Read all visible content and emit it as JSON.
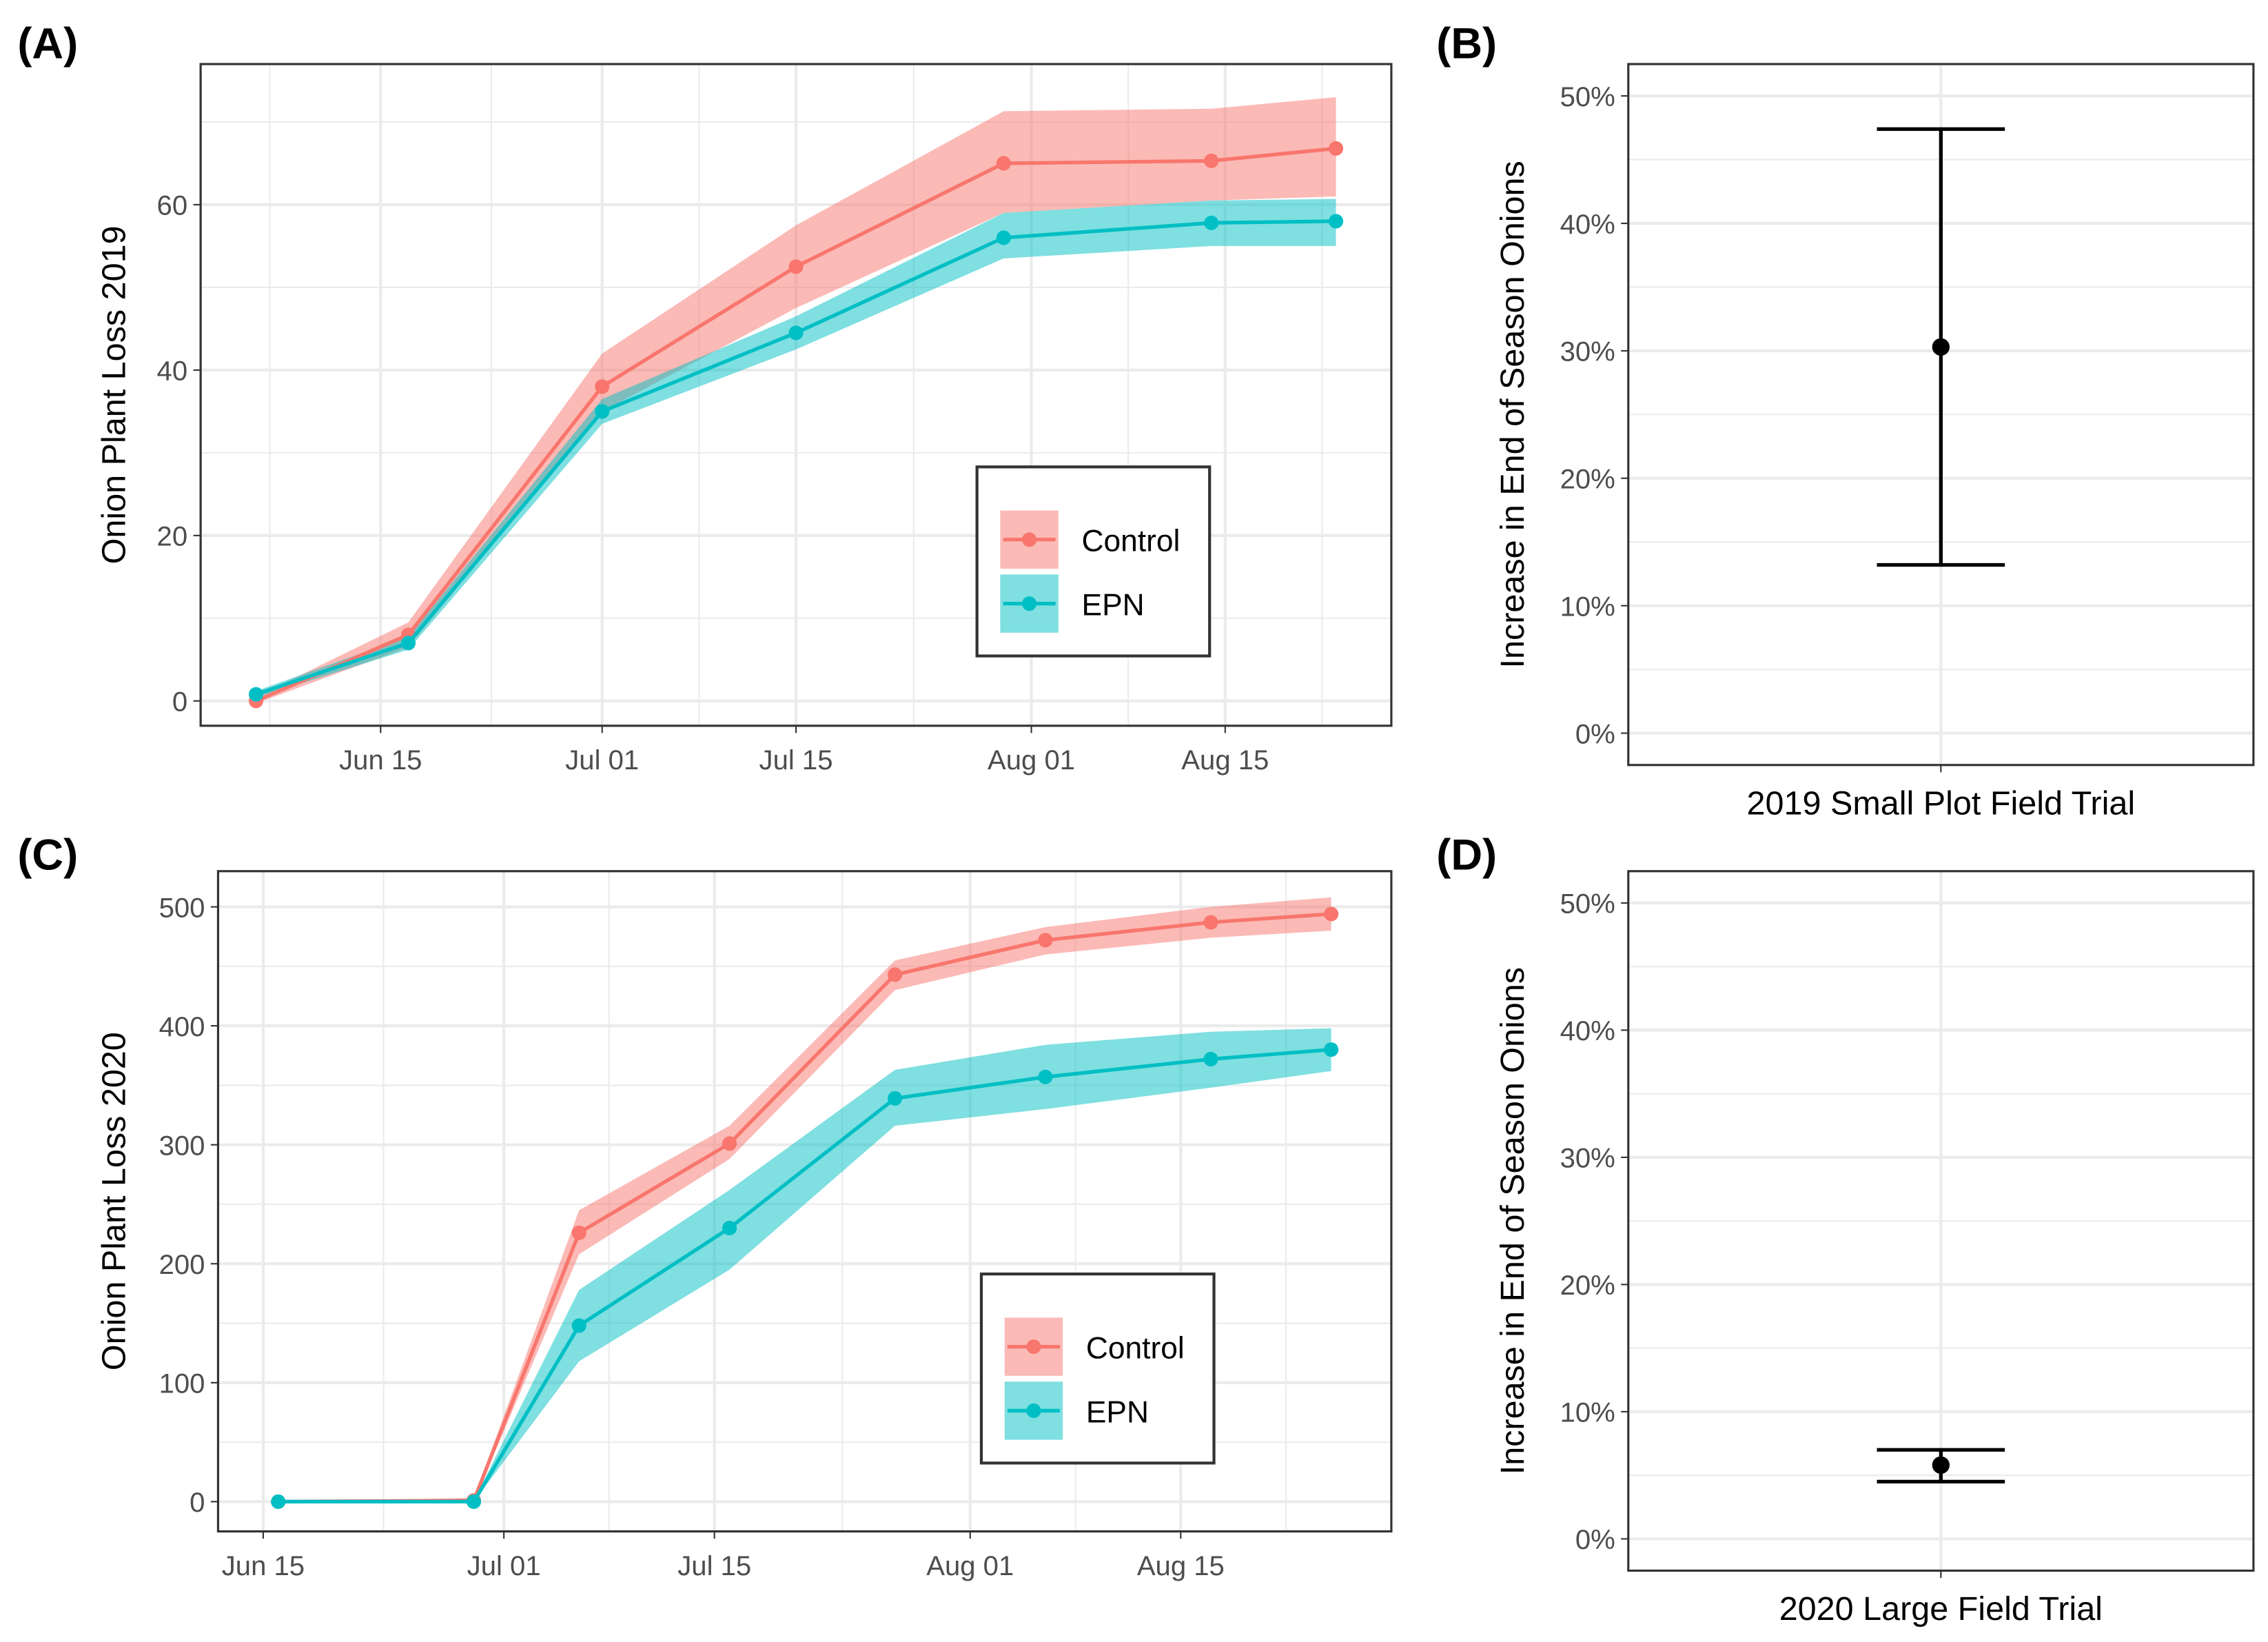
{
  "colors": {
    "control": "#F8766D",
    "epn": "#00BFC4",
    "grid": "#EBEBEB",
    "border": "#333333"
  },
  "chart_data": [
    {
      "panel": "(A)",
      "type": "line",
      "ylabel": "Onion Plant Loss 2019",
      "xlabel": "",
      "xlim": [
        "2019-06-02",
        "2019-08-27"
      ],
      "ylim": [
        -3,
        77
      ],
      "xticks": [
        {
          "date": "2019-06-15",
          "label": "Jun 15"
        },
        {
          "date": "2019-07-01",
          "label": "Jul 01"
        },
        {
          "date": "2019-07-15",
          "label": "Jul 15"
        },
        {
          "date": "2019-08-01",
          "label": "Aug 01"
        },
        {
          "date": "2019-08-15",
          "label": "Aug 15"
        }
      ],
      "yticks": [
        0,
        20,
        40,
        60
      ],
      "x": [
        "2019-06-06",
        "2019-06-17",
        "2019-07-01",
        "2019-07-15",
        "2019-07-30",
        "2019-08-14",
        "2019-08-23"
      ],
      "series": [
        {
          "name": "Control",
          "values": [
            0,
            8,
            38,
            52.5,
            65,
            65.3,
            66.8
          ],
          "lower": [
            -0.3,
            6.5,
            35,
            47.5,
            59,
            60.5,
            61
          ],
          "upper": [
            0.5,
            9.5,
            42,
            57.5,
            71.3,
            71.6,
            73
          ]
        },
        {
          "name": "EPN",
          "values": [
            0.8,
            7,
            35,
            44.5,
            56,
            57.8,
            58
          ],
          "lower": [
            0.4,
            6.2,
            33.5,
            42.5,
            53.5,
            55,
            55
          ],
          "upper": [
            1.2,
            7.8,
            36.5,
            46.5,
            59,
            60.5,
            60.7
          ]
        }
      ],
      "legend": {
        "placement": "bottom-right-inside",
        "entries": [
          "Control",
          "EPN"
        ]
      }
    },
    {
      "panel": "(B)",
      "type": "errorbar",
      "ylabel": "Increase in End of Season Onions",
      "category": "2019 Small Plot Field Trial",
      "ylim": [
        -2.5,
        52.5
      ],
      "yticks": [
        {
          "v": 0,
          "label": "0%"
        },
        {
          "v": 10,
          "label": "10%"
        },
        {
          "v": 20,
          "label": "20%"
        },
        {
          "v": 30,
          "label": "30%"
        },
        {
          "v": 40,
          "label": "40%"
        },
        {
          "v": 50,
          "label": "50%"
        }
      ],
      "estimate": 30.3,
      "lower": 13.2,
      "upper": 47.4
    },
    {
      "panel": "(C)",
      "type": "line",
      "ylabel": "Onion Plant Loss 2020",
      "xlabel": "",
      "xlim": [
        "2020-06-12",
        "2020-08-29"
      ],
      "ylim": [
        -25,
        530
      ],
      "xticks": [
        {
          "date": "2020-06-15",
          "label": "Jun 15"
        },
        {
          "date": "2020-07-01",
          "label": "Jul 01"
        },
        {
          "date": "2020-07-15",
          "label": "Jul 15"
        },
        {
          "date": "2020-08-01",
          "label": "Aug 01"
        },
        {
          "date": "2020-08-15",
          "label": "Aug 15"
        }
      ],
      "yticks": [
        0,
        100,
        200,
        300,
        400,
        500
      ],
      "x": [
        "2020-06-16",
        "2020-06-29",
        "2020-07-06",
        "2020-07-16",
        "2020-07-27",
        "2020-08-06",
        "2020-08-17",
        "2020-08-25"
      ],
      "series": [
        {
          "name": "Control",
          "values": [
            0,
            1,
            226,
            301,
            443,
            472,
            487,
            494
          ],
          "lower": [
            0,
            0,
            208,
            288,
            430,
            460,
            474,
            480
          ],
          "upper": [
            0,
            3,
            245,
            316,
            455,
            483,
            500,
            508
          ]
        },
        {
          "name": "EPN",
          "values": [
            0,
            0,
            148,
            230,
            339,
            357,
            372,
            380
          ],
          "lower": [
            0,
            0,
            118,
            195,
            316,
            330,
            348,
            362
          ],
          "upper": [
            0,
            1,
            178,
            262,
            363,
            384,
            395,
            398
          ]
        }
      ],
      "legend": {
        "placement": "bottom-right-inside",
        "entries": [
          "Control",
          "EPN"
        ]
      }
    },
    {
      "panel": "(D)",
      "type": "errorbar",
      "ylabel": "Increase in End of Season Onions",
      "category": "2020 Large Field Trial",
      "ylim": [
        -2.5,
        52.5
      ],
      "yticks": [
        {
          "v": 0,
          "label": "0%"
        },
        {
          "v": 10,
          "label": "10%"
        },
        {
          "v": 20,
          "label": "20%"
        },
        {
          "v": 30,
          "label": "30%"
        },
        {
          "v": 40,
          "label": "40%"
        },
        {
          "v": 50,
          "label": "50%"
        }
      ],
      "estimate": 5.8,
      "lower": 4.5,
      "upper": 7.0
    }
  ]
}
